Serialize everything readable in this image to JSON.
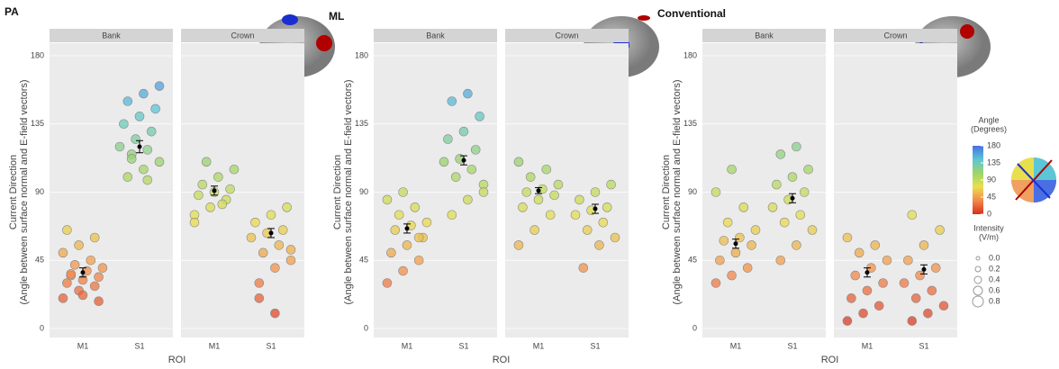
{
  "chart_data": [
    {
      "type": "scatter",
      "title": "PA",
      "x_label": "ROI",
      "y_label": [
        "Current Direction",
        "(Angle between surface normal and E-field vectors)"
      ],
      "ylim": [
        0,
        180
      ],
      "yticks": [
        0,
        45,
        90,
        135,
        180
      ],
      "categories": [
        "M1",
        "S1"
      ],
      "facets": [
        {
          "name": "Bank",
          "values": [
            [
              20,
              25,
              28,
              30,
              32,
              34,
              35,
              38,
              40,
              42,
              45,
              50,
              55,
              60,
              65,
              22,
              18,
              36
            ],
            [
              100,
              105,
              110,
              115,
              118,
              120,
              125,
              130,
              135,
              140,
              145,
              150,
              155,
              160,
              112,
              98
            ]
          ],
          "means": [
            37,
            120
          ],
          "errors": [
            3,
            4
          ]
        },
        {
          "name": "Crown",
          "values": [
            [
              75,
              80,
              85,
              88,
              90,
              92,
              95,
              100,
              105,
              110,
              82,
              70
            ],
            [
              30,
              40,
              45,
              50,
              55,
              60,
              63,
              65,
              70,
              75,
              80,
              20,
              10,
              52
            ]
          ],
          "means": [
            91,
            63
          ],
          "errors": [
            3,
            3
          ]
        }
      ]
    },
    {
      "type": "scatter",
      "title": "ML",
      "x_label": "ROI",
      "y_label": [
        "Current Direction",
        "(Angle between surface normal and E-field vectors)"
      ],
      "ylim": [
        0,
        180
      ],
      "yticks": [
        0,
        45,
        90,
        135,
        180
      ],
      "categories": [
        "M1",
        "S1"
      ],
      "facets": [
        {
          "name": "Bank",
          "values": [
            [
              30,
              38,
              45,
              50,
              55,
              60,
              65,
              68,
              70,
              75,
              80,
              85,
              90,
              60
            ],
            [
              75,
              85,
              95,
              100,
              105,
              110,
              112,
              118,
              125,
              130,
              140,
              150,
              155,
              90
            ]
          ],
          "means": [
            66,
            111
          ],
          "errors": [
            3,
            3
          ]
        },
        {
          "name": "Crown",
          "values": [
            [
              55,
              65,
              75,
              80,
              85,
              88,
              90,
              92,
              95,
              100,
              105,
              110
            ],
            [
              40,
              55,
              60,
              65,
              70,
              75,
              78,
              80,
              85,
              90,
              95
            ]
          ],
          "means": [
            91,
            79
          ],
          "errors": [
            2,
            3
          ]
        }
      ]
    },
    {
      "type": "scatter",
      "title": "Conventional",
      "x_label": "ROI",
      "y_label": [
        "Current Direction",
        "(Angle between surface normal and E-field vectors)"
      ],
      "ylim": [
        0,
        180
      ],
      "yticks": [
        0,
        45,
        90,
        135,
        180
      ],
      "categories": [
        "M1",
        "S1"
      ],
      "facets": [
        {
          "name": "Bank",
          "values": [
            [
              30,
              35,
              40,
              45,
              50,
              55,
              58,
              60,
              65,
              70,
              80,
              90,
              105
            ],
            [
              45,
              55,
              65,
              70,
              75,
              80,
              85,
              90,
              95,
              100,
              105,
              115,
              120
            ]
          ],
          "means": [
            56,
            86
          ],
          "errors": [
            3,
            3
          ]
        },
        {
          "name": "Crown",
          "values": [
            [
              5,
              10,
              15,
              20,
              25,
              30,
              35,
              40,
              45,
              50,
              55,
              60
            ],
            [
              5,
              10,
              15,
              20,
              25,
              30,
              35,
              40,
              45,
              55,
              65,
              75
            ]
          ],
          "means": [
            37,
            39
          ],
          "errors": [
            3,
            3
          ]
        }
      ]
    }
  ],
  "legend": {
    "angle_title": [
      "Angle",
      "(Degrees)"
    ],
    "angle_ticks": [
      0,
      45,
      90,
      135,
      180
    ],
    "angle_range": [
      0,
      180
    ],
    "colors": [
      "#d7301f",
      "#f4894a",
      "#e8df4c",
      "#9fd46a",
      "#5cc6d6",
      "#4a6fe3"
    ],
    "intensity_title": [
      "Intensity",
      "(V/m)"
    ],
    "intensity_ticks": [
      {
        "value": 0,
        "label": "0.0"
      },
      {
        "value": 0.2,
        "label": "0.2"
      },
      {
        "value": 0.4,
        "label": "0.4"
      },
      {
        "value": 0.6,
        "label": "0.6"
      },
      {
        "value": 0.8,
        "label": "0.8"
      }
    ]
  }
}
